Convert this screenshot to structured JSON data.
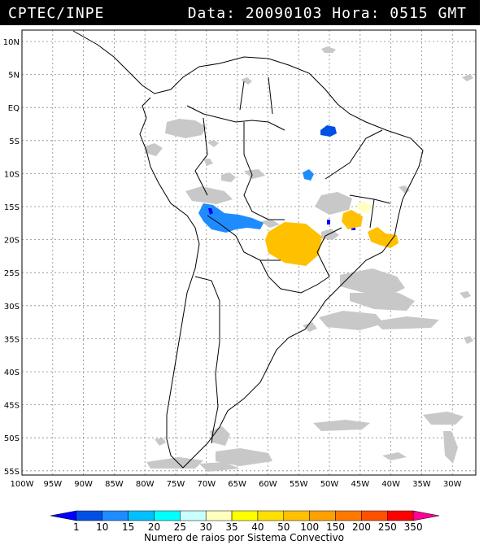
{
  "header": {
    "source": "CPTEC/INPE",
    "datetime": "Data: 20090103 Hora: 0515 GMT"
  },
  "axes": {
    "lat_labels": [
      "10N",
      "5N",
      "EQ",
      "5S",
      "10S",
      "15S",
      "20S",
      "25S",
      "30S",
      "35S",
      "40S",
      "45S",
      "50S",
      "55S"
    ],
    "lon_labels": [
      "100W",
      "95W",
      "90W",
      "85W",
      "80W",
      "75W",
      "70W",
      "65W",
      "60W",
      "55W",
      "50W",
      "45W",
      "40W",
      "35W",
      "30W"
    ]
  },
  "legend": {
    "ticks": [
      "1",
      "10",
      "15",
      "20",
      "25",
      "30",
      "35",
      "40",
      "50",
      "100",
      "150",
      "200",
      "250",
      "350"
    ],
    "colors": [
      "#0000ff",
      "#0050e6",
      "#1e8cff",
      "#00c0ff",
      "#00ffff",
      "#c8ffff",
      "#ffffc0",
      "#ffff00",
      "#ffe000",
      "#ffc000",
      "#ffa000",
      "#ff7800",
      "#ff5000",
      "#ff0000",
      "#ff0096"
    ],
    "caption": "Numero de raios por Sistema Convectivo"
  }
}
